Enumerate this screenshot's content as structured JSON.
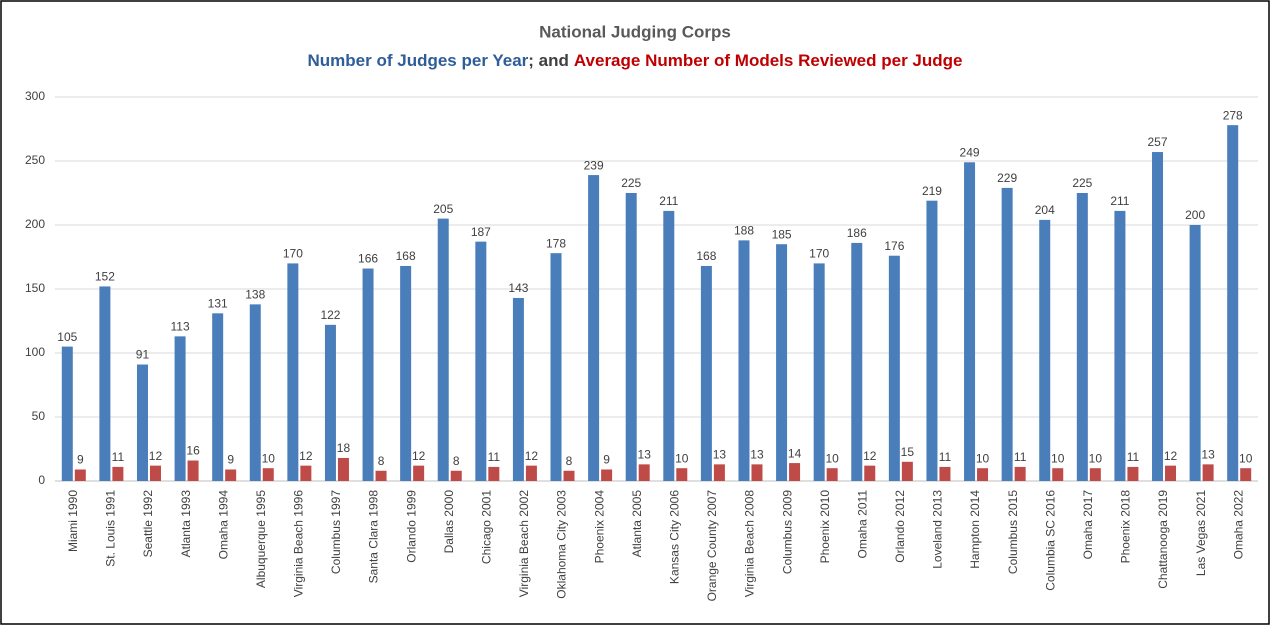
{
  "chart_data": {
    "type": "bar",
    "title": "National Judging Corps",
    "subtitle_joiner": "; and",
    "categories": [
      "Miami 1990",
      "St. Louis 1991",
      "Seattle 1992",
      "Atlanta 1993",
      "Omaha 1994",
      "Albuquerque 1995",
      "Virginia Beach 1996",
      "Columbus 1997",
      "Santa Clara 1998",
      "Orlando 1999",
      "Dallas 2000",
      "Chicago 2001",
      "Virginia Beach 2002",
      "Oklahoma City 2003",
      "Phoenix 2004",
      "Atlanta 2005",
      "Kansas City 2006",
      "Orange County 2007",
      "Virginia Beach 2008",
      "Columbus 2009",
      "Phoenix 2010",
      "Omaha 2011",
      "Orlando 2012",
      "Loveland 2013",
      "Hampton 2014",
      "Columbus 2015",
      "Columbia SC 2016",
      "Omaha 2017",
      "Phoenix 2018",
      "Chattanooga 2019",
      "Las Vegas 2021",
      "Omaha 2022"
    ],
    "series": [
      {
        "name": "Number of Judges per Year",
        "color": "#4a7ebb",
        "values": [
          105,
          152,
          91,
          113,
          131,
          138,
          170,
          122,
          166,
          168,
          205,
          187,
          143,
          178,
          239,
          225,
          211,
          168,
          188,
          185,
          170,
          186,
          176,
          219,
          249,
          229,
          204,
          225,
          211,
          257,
          200,
          278
        ]
      },
      {
        "name": "Average Number of Models Reviewed per Judge",
        "color": "#be4b48",
        "values": [
          9,
          11,
          12,
          16,
          9,
          10,
          12,
          18,
          8,
          12,
          8,
          11,
          12,
          8,
          9,
          13,
          10,
          13,
          13,
          14,
          10,
          12,
          15,
          11,
          10,
          11,
          10,
          10,
          11,
          12,
          13,
          10
        ]
      }
    ],
    "title_colors": {
      "title": "#595959",
      "joiner": "#404040",
      "series0": "#2e5d99",
      "series1": "#c00000"
    },
    "ylim": [
      0,
      300
    ],
    "yticks": [
      0,
      50,
      100,
      150,
      200,
      250,
      300
    ],
    "grid": true
  }
}
